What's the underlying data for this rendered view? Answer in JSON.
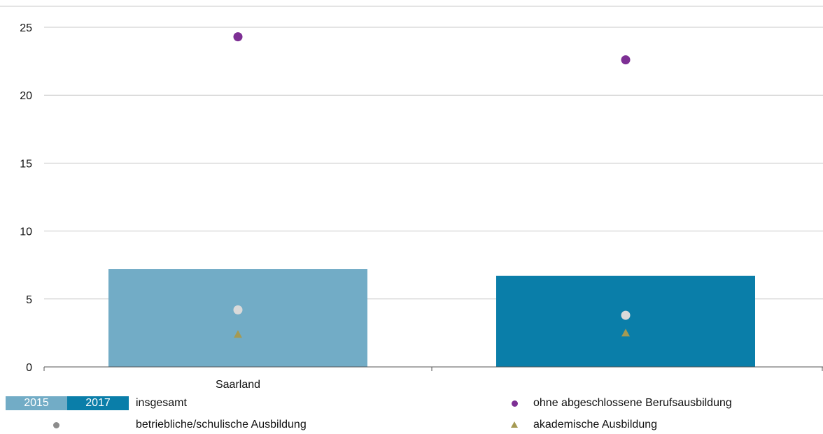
{
  "colors": {
    "bar_2015": "#72acc6",
    "bar_2017": "#0a7ea9",
    "ohne": "#7d2f94",
    "betrieblich": "#d9d9d9",
    "betrieblich_legend": "#8c8c8c",
    "akademisch": "#a59a53",
    "grid": "#c8c8c8",
    "axis": "#555555"
  },
  "legend": {
    "year_2015": "2015",
    "year_2017": "2017",
    "insgesamt": "insgesamt",
    "ohne": "ohne abgeschlossene Berufsausbildung",
    "betrieblich": "betriebliche/schulische Ausbildung",
    "akademisch": "akademische Ausbildung"
  },
  "chart_data": {
    "type": "bar",
    "categories": [
      "Saarland"
    ],
    "x_tick_labels": [
      "Saarland",
      ""
    ],
    "ylim": [
      0,
      25
    ],
    "y_ticks": [
      0,
      5,
      10,
      15,
      20,
      25
    ],
    "grid": true,
    "legend_placement": "bottom",
    "title": "",
    "xlabel": "",
    "ylabel": "",
    "series": [
      {
        "name": "insgesamt",
        "mark": "bar",
        "values_by_year": [
          {
            "year": "2015",
            "value": 7.2
          },
          {
            "year": "2017",
            "value": 6.7
          }
        ]
      },
      {
        "name": "ohne abgeschlossene Berufsausbildung",
        "mark": "circle",
        "values_by_year": [
          {
            "year": "2015",
            "value": 24.3
          },
          {
            "year": "2017",
            "value": 22.6
          }
        ]
      },
      {
        "name": "betriebliche/schulische Ausbildung",
        "mark": "circle",
        "values_by_year": [
          {
            "year": "2015",
            "value": 4.2
          },
          {
            "year": "2017",
            "value": 3.8
          }
        ]
      },
      {
        "name": "akademische Ausbildung",
        "mark": "triangle",
        "values_by_year": [
          {
            "year": "2015",
            "value": 2.4
          },
          {
            "year": "2017",
            "value": 2.5
          }
        ]
      }
    ]
  }
}
